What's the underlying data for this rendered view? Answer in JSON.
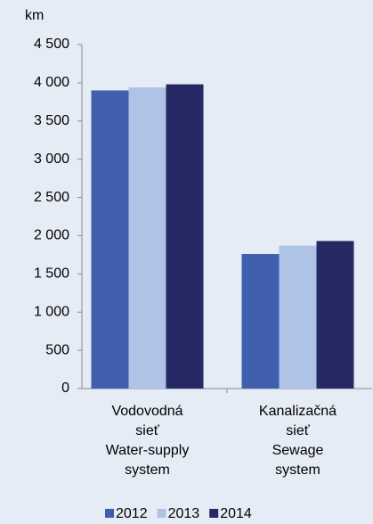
{
  "chart_data": {
    "type": "bar",
    "y_axis_label": "km",
    "categories": [
      "Vodovodná sieť Water-supply system",
      "Kanalizačná sieť Sewage system"
    ],
    "series": [
      {
        "name": "2012",
        "color": "#3f5fad",
        "values": [
          3900,
          1760
        ]
      },
      {
        "name": "2013",
        "color": "#aec3e6",
        "values": [
          3940,
          1870
        ]
      },
      {
        "name": "2014",
        "color": "#262a64",
        "values": [
          3980,
          1930
        ]
      }
    ],
    "ylim": [
      0,
      4500
    ],
    "yticks": [
      0,
      500,
      {
        "value": 1000,
        "label": "1 000"
      },
      {
        "value": 1500,
        "label": "1 500"
      },
      {
        "value": 2000,
        "label": "2 000"
      },
      {
        "value": 2500,
        "label": "2 500"
      },
      {
        "value": 3000,
        "label": "3 000"
      },
      {
        "value": 3500,
        "label": "3 500"
      },
      {
        "value": 4000,
        "label": "4 000"
      },
      {
        "value": 4500,
        "label": "4 500"
      }
    ],
    "grid": false,
    "legend": "bottom"
  }
}
